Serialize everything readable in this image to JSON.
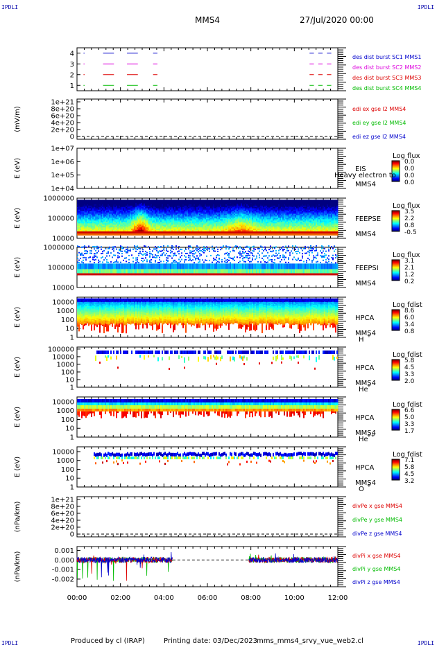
{
  "header": {
    "corner_label": "IPDLI",
    "spacecraft": "MMS4",
    "date": "27/Jul/2020 00:00"
  },
  "footer": {
    "produced_by": "Produced by cl (IRAP)",
    "printing_date": "Printing date: 03/Dec/2023",
    "script_name": "mms_mms4_srvy_vue_web2.cl"
  },
  "colors": {
    "red": "#dd0000",
    "green": "#00bb00",
    "blue": "#0000cc",
    "magenta": "#dd00dd"
  },
  "chart_data": [
    {
      "type": "line",
      "id": "burst",
      "ylim": [
        0.5,
        4.5
      ],
      "yticks": [
        "1",
        "2",
        "3",
        "4"
      ],
      "series": [
        {
          "name": "des dist burst SC1 MMS1",
          "level": 4,
          "color": "#0000cc",
          "intervals": [
            [
              0.3,
              0.35
            ],
            [
              1.2,
              1.7
            ],
            [
              2.3,
              2.8
            ],
            [
              3.5,
              3.7
            ],
            [
              10.7,
              10.9
            ],
            [
              11.1,
              11.3
            ],
            [
              11.5,
              11.7
            ]
          ]
        },
        {
          "name": "des dist burst SC2 MMS2",
          "level": 3,
          "color": "#dd00dd",
          "intervals": [
            [
              0.3,
              0.35
            ],
            [
              1.2,
              1.7
            ],
            [
              2.3,
              2.8
            ],
            [
              3.5,
              3.7
            ],
            [
              10.7,
              10.9
            ],
            [
              11.1,
              11.3
            ],
            [
              11.5,
              11.7
            ]
          ]
        },
        {
          "name": "des dist burst SC3 MMS3",
          "level": 2,
          "color": "#dd0000",
          "intervals": [
            [
              0.3,
              0.35
            ],
            [
              1.2,
              1.7
            ],
            [
              2.3,
              2.8
            ],
            [
              3.5,
              3.7
            ],
            [
              10.7,
              10.9
            ],
            [
              11.1,
              11.3
            ],
            [
              11.5,
              11.7
            ]
          ]
        },
        {
          "name": "des dist burst SC4 MMS4",
          "level": 1,
          "color": "#00bb00",
          "intervals": [
            [
              0.3,
              0.35
            ],
            [
              1.2,
              1.7
            ],
            [
              2.3,
              2.8
            ],
            [
              3.5,
              3.7
            ],
            [
              10.7,
              10.9
            ],
            [
              11.1,
              11.3
            ],
            [
              11.5,
              11.7
            ]
          ]
        }
      ]
    },
    {
      "type": "line",
      "id": "edi",
      "ylabel": "(mV/m)",
      "yticks": [
        "0",
        "2e+20",
        "4e+20",
        "6e+20",
        "8e+20",
        "1e+21"
      ],
      "series": [
        {
          "name": "edi ex gse l2 MMS4",
          "color": "#dd0000"
        },
        {
          "name": "edi ey gse l2 MMS4",
          "color": "#00bb00"
        },
        {
          "name": "edi ez gse l2 MMS4",
          "color": "#0000cc"
        }
      ]
    },
    {
      "type": "heatmap",
      "id": "eis",
      "ylabel": "E (eV)",
      "yticks": [
        "1e+04",
        "1e+05",
        "1e+06",
        "1e+07"
      ],
      "instrument": [
        "EIS",
        "MMS4"
      ],
      "overlay_text": "Heavy electron to",
      "colorbar": {
        "title": "Log flux",
        "ticks": [
          "0.0",
          "0.0",
          "0.0",
          "0.0"
        ]
      }
    },
    {
      "type": "heatmap",
      "id": "feepse",
      "ylabel": "E (eV)",
      "yticks": [
        "10000",
        "100000",
        "1000000"
      ],
      "instrument": [
        "FEEPSE",
        "MMS4"
      ],
      "colorbar": {
        "title": "Log flux",
        "ticks": [
          "3.5",
          "2.2",
          "0.8",
          "-0.5"
        ]
      }
    },
    {
      "type": "heatmap",
      "id": "feepsi",
      "ylabel": "E (eV)",
      "yticks": [
        "10000",
        "100000",
        "1000000"
      ],
      "instrument": [
        "FEEPSI",
        "MMS4"
      ],
      "colorbar": {
        "title": "Log flux",
        "ticks": [
          "3.1",
          "2.1",
          "1.2",
          "0.2"
        ]
      }
    },
    {
      "type": "heatmap",
      "id": "hpca_h",
      "ylabel": "E (eV)",
      "yticks": [
        "1",
        "10",
        "100",
        "1000",
        "10000"
      ],
      "instrument": [
        "HPCA",
        "MMS4"
      ],
      "species": "H",
      "species_charge": "+",
      "colorbar": {
        "title": "Log fdist",
        "ticks": [
          "8.6",
          "6.0",
          "3.4",
          "0.8"
        ]
      }
    },
    {
      "type": "heatmap",
      "id": "hpca_he",
      "ylabel": "E (eV)",
      "yticks": [
        "1",
        "10",
        "100",
        "1000",
        "10000",
        "100000"
      ],
      "instrument": [
        "HPCA",
        "MMS4"
      ],
      "species": "He",
      "species_charge": "+",
      "colorbar": {
        "title": "Log fdist",
        "ticks": [
          "5.8",
          "4.5",
          "3.3",
          "2.0"
        ]
      }
    },
    {
      "type": "heatmap",
      "id": "hpca_hepp",
      "ylabel": "E (eV)",
      "yticks": [
        "1",
        "10",
        "100",
        "1000",
        "10000"
      ],
      "instrument": [
        "HPCA",
        "MMS4"
      ],
      "species": "He",
      "species_charge": "++",
      "colorbar": {
        "title": "Log fdist",
        "ticks": [
          "6.6",
          "5.0",
          "3.3",
          "1.7"
        ]
      }
    },
    {
      "type": "heatmap",
      "id": "hpca_o",
      "ylabel": "E (eV)",
      "yticks": [
        "1",
        "10",
        "100",
        "1000",
        "10000"
      ],
      "instrument": [
        "HPCA",
        "MMS4"
      ],
      "species": "O",
      "species_charge": "+",
      "colorbar": {
        "title": "Log fdist",
        "ticks": [
          "7.1",
          "5.8",
          "4.5",
          "3.2"
        ]
      }
    },
    {
      "type": "line",
      "id": "divpe",
      "ylabel": "(nPa/km)",
      "yticks": [
        "0",
        "2e+20",
        "4e+20",
        "6e+20",
        "8e+20",
        "1e+21"
      ],
      "series": [
        {
          "name": "divPe x gse MMS4",
          "color": "#dd0000"
        },
        {
          "name": "divPe y gse MMS4",
          "color": "#00bb00"
        },
        {
          "name": "divPe z gse MMS4",
          "color": "#0000cc"
        }
      ]
    },
    {
      "type": "line",
      "id": "divpi",
      "ylabel": "(nPa/km)",
      "ylim": [
        -0.0028,
        0.0014
      ],
      "yticks": [
        "-0.002",
        "-0.001",
        "0.000",
        "0.001"
      ],
      "data_gap": [
        4.4,
        7.9
      ],
      "series": [
        {
          "name": "divPi x gse MMS4",
          "color": "#dd0000"
        },
        {
          "name": "divPi y gse MMS4",
          "color": "#00bb00"
        },
        {
          "name": "divPi z gse MMS4",
          "color": "#0000cc"
        }
      ]
    }
  ],
  "x_axis": {
    "xlim": [
      0,
      12
    ],
    "ticks": [
      "00:00",
      "02:00",
      "04:00",
      "06:00",
      "08:00",
      "10:00",
      "12:00"
    ]
  }
}
